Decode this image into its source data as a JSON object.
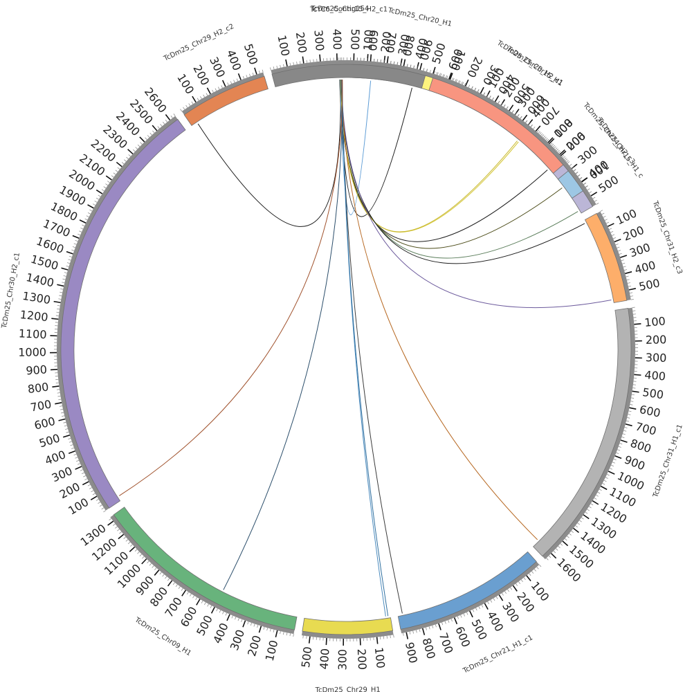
{
  "figure": {
    "background": "#ffffff",
    "start_angle_deg": -1.5,
    "gap_deg": 1.6,
    "scale_deg_per_unit": 0.0332
  },
  "chromosomes": [
    {
      "name": "TcYC6_Contig154",
      "length": 25,
      "color": "#a6cde6",
      "tick_step": 100
    },
    {
      "name": "TcDm25_Chr20_H1",
      "length": 700,
      "color": "#fef37e",
      "tick_step": 100
    },
    {
      "name": "TcDm25_Chr20_H2_c1",
      "length": 420,
      "color": "#9fd99b",
      "tick_step": 100
    },
    {
      "name": "TcDm25_Chr24_H2_c3",
      "length": 560,
      "color": "#bbb6d7",
      "tick_step": 100
    },
    {
      "name": "TcDm25_Chr31_H2_c3",
      "length": 560,
      "color": "#fdae6a",
      "tick_step": 100
    },
    {
      "name": "TcDm25_Chr31_H1_c1",
      "length": 1650,
      "color": "#b3b3b3",
      "tick_step": 100
    },
    {
      "name": "TcDm25_Chr21_H1_c1",
      "length": 930,
      "color": "#6a9fd0",
      "tick_step": 100
    },
    {
      "name": "TcDm25_Chr29_H1",
      "length": 550,
      "color": "#e8db51",
      "tick_step": 100
    },
    {
      "name": "TcDm25_Chr09_H1",
      "length": 1330,
      "color": "#68b37c",
      "tick_step": 100
    },
    {
      "name": "TcDm25_Chr30_H2_c1",
      "length": 2640,
      "color": "#9a89c3",
      "tick_step": 100
    },
    {
      "name": "TcDm25_Chr29_H2_c2",
      "length": 540,
      "color": "#e38553",
      "tick_step": 100
    },
    {
      "name": "TcDm25_Chr15_H2_c1",
      "length": 940,
      "color": "#888888",
      "tick_step": 100
    },
    {
      "name": "TcDm25_Chr15_H1",
      "length": 960,
      "color": "#f89580",
      "tick_step": 100
    },
    {
      "name": "TcDm25_Chr15_H1_c",
      "length": 150,
      "color": "#9dc7e4",
      "tick_step": 100
    }
  ],
  "links": [
    {
      "from": "TcYC6_Contig154",
      "from_pos": 5,
      "to": "TcDm25_Chr15_H1",
      "to_pos": 920,
      "color": "#1a1a1a"
    },
    {
      "from": "TcYC6_Contig154",
      "from_pos": 8,
      "to": "TcDm25_Chr15_H2_c1",
      "to_pos": 880,
      "color": "#1a1a1a"
    },
    {
      "from": "TcYC6_Contig154",
      "from_pos": 10,
      "to": "TcDm25_Chr29_H2_c2",
      "to_pos": 40,
      "color": "#1a1a1a"
    },
    {
      "from": "TcYC6_Contig154",
      "from_pos": 6,
      "to": "TcDm25_Chr15_H1_c",
      "to_pos": 60,
      "color": "#4d4d1a"
    },
    {
      "from": "TcYC6_Contig154",
      "from_pos": 9,
      "to": "TcDm25_Chr20_H1",
      "to_pos": 130,
      "color": "#5b9bd5"
    },
    {
      "from": "TcYC6_Contig154",
      "from_pos": 12,
      "to": "TcDm25_Chr20_H2_c1",
      "to_pos": 420,
      "color": "#d4c634"
    },
    {
      "from": "TcYC6_Contig154",
      "from_pos": 13,
      "to": "TcDm25_Chr20_H2_c1",
      "to_pos": 410,
      "color": "#c8b82c"
    },
    {
      "from": "TcYC6_Contig154",
      "from_pos": 14,
      "to": "TcDm25_Chr24_H2_c3",
      "to_pos": 540,
      "color": "#5a7d5a"
    },
    {
      "from": "TcYC6_Contig154",
      "from_pos": 15,
      "to": "TcDm25_Chr31_H2_c3",
      "to_pos": 20,
      "color": "#1a1a1a"
    },
    {
      "from": "TcYC6_Contig154",
      "from_pos": 16,
      "to": "TcDm25_Chr31_H2_c3",
      "to_pos": 540,
      "color": "#6c5a9c"
    },
    {
      "from": "TcYC6_Contig154",
      "from_pos": 17,
      "to": "TcDm25_Chr31_H1_c1",
      "to_pos": 1600,
      "color": "#b5651d"
    },
    {
      "from": "TcYC6_Contig154",
      "from_pos": 18,
      "to": "TcDm25_Chr21_H1_c1",
      "to_pos": 900,
      "color": "#3a3a3a"
    },
    {
      "from": "TcYC6_Contig154",
      "from_pos": 19,
      "to": "TcDm25_Chr29_H1",
      "to_pos": 30,
      "color": "#4b8bbe"
    },
    {
      "from": "TcYC6_Contig154",
      "from_pos": 20,
      "to": "TcDm25_Chr29_H1",
      "to_pos": 15,
      "color": "#2f6f9f"
    },
    {
      "from": "TcYC6_Contig154",
      "from_pos": 21,
      "to": "TcDm25_Chr09_H1",
      "to_pos": 500,
      "color": "#2a4d6a"
    },
    {
      "from": "TcYC6_Contig154",
      "from_pos": 22,
      "to": "TcDm25_Chr30_H2_c1",
      "to_pos": 30,
      "color": "#a0522d"
    }
  ]
}
